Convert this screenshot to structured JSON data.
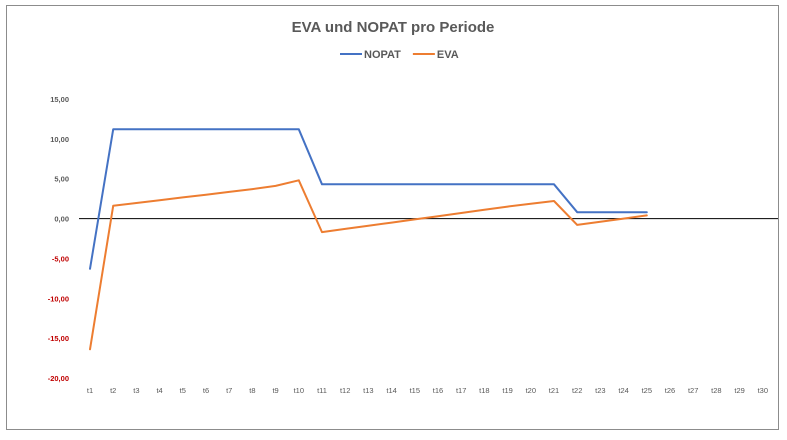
{
  "chart_data": {
    "type": "line",
    "title": "EVA und NOPAT pro Periode",
    "xlabel": "",
    "ylabel": "",
    "legend_position": "top",
    "grid": false,
    "ylim": [
      -20,
      15
    ],
    "y_ticks": [
      15,
      10,
      5,
      0,
      -5,
      -10,
      -15,
      -20
    ],
    "y_tick_labels": [
      "15,00",
      "10,00",
      "5,00",
      "0,00",
      "-5,00",
      "-10,00",
      "-15,00",
      "-20,00"
    ],
    "negative_tick_color": "#c00000",
    "positive_tick_color": "#595959",
    "categories": [
      "t1",
      "t2",
      "t3",
      "t4",
      "t5",
      "t6",
      "t7",
      "t8",
      "t9",
      "t10",
      "t11",
      "t12",
      "t13",
      "t14",
      "t15",
      "t16",
      "t17",
      "t18",
      "t19",
      "t20",
      "t21",
      "t22",
      "t23",
      "t24",
      "t25",
      "t26",
      "t27",
      "t28",
      "t29",
      "t30"
    ],
    "series": [
      {
        "name": "NOPAT",
        "color": "#4472c4",
        "values": [
          -6.3,
          11.2,
          11.2,
          11.2,
          11.2,
          11.2,
          11.2,
          11.2,
          11.2,
          11.2,
          4.3,
          4.3,
          4.3,
          4.3,
          4.3,
          4.3,
          4.3,
          4.3,
          4.3,
          4.3,
          4.3,
          0.8,
          0.8,
          0.8,
          0.8,
          null,
          null,
          null,
          null,
          null
        ]
      },
      {
        "name": "EVA",
        "color": "#ed7d31",
        "values": [
          -16.4,
          1.6,
          1.95,
          2.3,
          2.65,
          3.0,
          3.35,
          3.7,
          4.1,
          4.8,
          -1.7,
          -1.3,
          -0.9,
          -0.5,
          -0.1,
          0.3,
          0.7,
          1.1,
          1.5,
          1.85,
          2.2,
          -0.8,
          -0.4,
          0.0,
          0.4,
          null,
          null,
          null,
          null,
          null
        ]
      }
    ]
  }
}
